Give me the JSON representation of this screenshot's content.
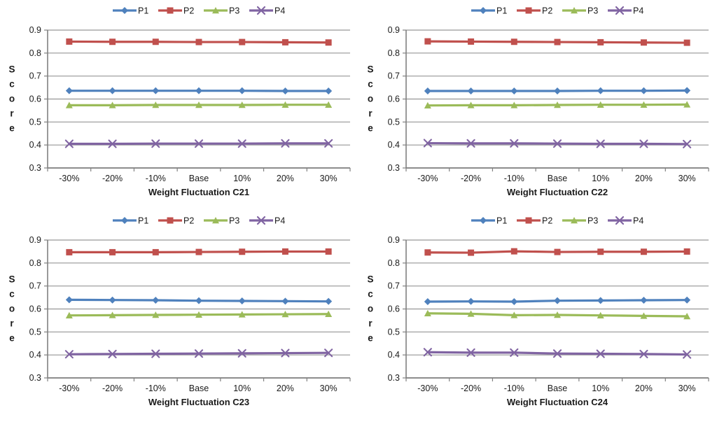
{
  "page": {
    "background": "#ffffff"
  },
  "colors": {
    "p1": "#4F81BD",
    "p2": "#C0504D",
    "p3": "#9BBB59",
    "p4": "#8064A2",
    "gridline": "#969696",
    "axis": "#808080",
    "text": "#1a1a1a"
  },
  "legend": {
    "position": "top",
    "entries": [
      {
        "label": "P1",
        "marker": "diamond",
        "color": "#4F81BD"
      },
      {
        "label": "P2",
        "marker": "square",
        "color": "#C0504D"
      },
      {
        "label": "P3",
        "marker": "triangle",
        "color": "#9BBB59"
      },
      {
        "label": "P4",
        "marker": "x",
        "color": "#8064A2"
      }
    ]
  },
  "chart_data": [
    {
      "type": "line",
      "title": "",
      "xlabel": "Weight Fluctuation C21",
      "ylabel": "Score",
      "categories": [
        "-30%",
        "-20%",
        "-10%",
        "Base",
        "10%",
        "20%",
        "30%"
      ],
      "ylim": [
        0.3,
        0.9
      ],
      "ytick_step": 0.1,
      "grid": true,
      "legend_position": "top",
      "series": [
        {
          "name": "P1",
          "marker": "diamond",
          "color": "#4F81BD",
          "values": [
            0.636,
            0.636,
            0.636,
            0.636,
            0.636,
            0.635,
            0.635
          ]
        },
        {
          "name": "P2",
          "marker": "square",
          "color": "#C0504D",
          "values": [
            0.85,
            0.849,
            0.849,
            0.848,
            0.848,
            0.847,
            0.846
          ]
        },
        {
          "name": "P3",
          "marker": "triangle",
          "color": "#9BBB59",
          "values": [
            0.573,
            0.573,
            0.574,
            0.574,
            0.574,
            0.575,
            0.575
          ]
        },
        {
          "name": "P4",
          "marker": "x",
          "color": "#8064A2",
          "values": [
            0.405,
            0.405,
            0.406,
            0.406,
            0.406,
            0.407,
            0.407
          ]
        }
      ]
    },
    {
      "type": "line",
      "title": "",
      "xlabel": "Weight Fluctuation C22",
      "ylabel": "Score",
      "categories": [
        "-30%",
        "-20%",
        "-10%",
        "Base",
        "10%",
        "20%",
        "30%"
      ],
      "ylim": [
        0.3,
        0.9
      ],
      "ytick_step": 0.1,
      "grid": true,
      "legend_position": "top",
      "series": [
        {
          "name": "P1",
          "marker": "diamond",
          "color": "#4F81BD",
          "values": [
            0.635,
            0.635,
            0.635,
            0.635,
            0.636,
            0.636,
            0.637
          ]
        },
        {
          "name": "P2",
          "marker": "square",
          "color": "#C0504D",
          "values": [
            0.851,
            0.85,
            0.849,
            0.848,
            0.847,
            0.846,
            0.845
          ]
        },
        {
          "name": "P3",
          "marker": "triangle",
          "color": "#9BBB59",
          "values": [
            0.572,
            0.573,
            0.573,
            0.574,
            0.575,
            0.575,
            0.576
          ]
        },
        {
          "name": "P4",
          "marker": "x",
          "color": "#8064A2",
          "values": [
            0.408,
            0.407,
            0.407,
            0.406,
            0.405,
            0.405,
            0.404
          ]
        }
      ]
    },
    {
      "type": "line",
      "title": "",
      "xlabel": "Weight Fluctuation C23",
      "ylabel": "Score",
      "categories": [
        "-30%",
        "-20%",
        "-10%",
        "Base",
        "10%",
        "20%",
        "30%"
      ],
      "ylim": [
        0.3,
        0.9
      ],
      "ytick_step": 0.1,
      "grid": true,
      "legend_position": "top",
      "series": [
        {
          "name": "P1",
          "marker": "diamond",
          "color": "#4F81BD",
          "values": [
            0.64,
            0.639,
            0.638,
            0.636,
            0.635,
            0.634,
            0.633
          ]
        },
        {
          "name": "P2",
          "marker": "square",
          "color": "#C0504D",
          "values": [
            0.847,
            0.847,
            0.847,
            0.848,
            0.849,
            0.85,
            0.85
          ]
        },
        {
          "name": "P3",
          "marker": "triangle",
          "color": "#9BBB59",
          "values": [
            0.572,
            0.573,
            0.574,
            0.575,
            0.576,
            0.577,
            0.578
          ]
        },
        {
          "name": "P4",
          "marker": "x",
          "color": "#8064A2",
          "values": [
            0.403,
            0.404,
            0.405,
            0.406,
            0.407,
            0.408,
            0.409
          ]
        }
      ]
    },
    {
      "type": "line",
      "title": "",
      "xlabel": "Weight Fluctuation C24",
      "ylabel": "Score",
      "categories": [
        "-30%",
        "-20%",
        "-10%",
        "Base",
        "10%",
        "20%",
        "30%"
      ],
      "ylim": [
        0.3,
        0.9
      ],
      "ytick_step": 0.1,
      "grid": true,
      "legend_position": "top",
      "series": [
        {
          "name": "P1",
          "marker": "diamond",
          "color": "#4F81BD",
          "values": [
            0.632,
            0.633,
            0.632,
            0.636,
            0.637,
            0.638,
            0.639
          ]
        },
        {
          "name": "P2",
          "marker": "square",
          "color": "#C0504D",
          "values": [
            0.846,
            0.845,
            0.851,
            0.848,
            0.849,
            0.849,
            0.85
          ]
        },
        {
          "name": "P3",
          "marker": "triangle",
          "color": "#9BBB59",
          "values": [
            0.581,
            0.579,
            0.573,
            0.574,
            0.572,
            0.57,
            0.568
          ]
        },
        {
          "name": "P4",
          "marker": "x",
          "color": "#8064A2",
          "values": [
            0.412,
            0.41,
            0.41,
            0.406,
            0.405,
            0.404,
            0.402
          ]
        }
      ]
    }
  ]
}
